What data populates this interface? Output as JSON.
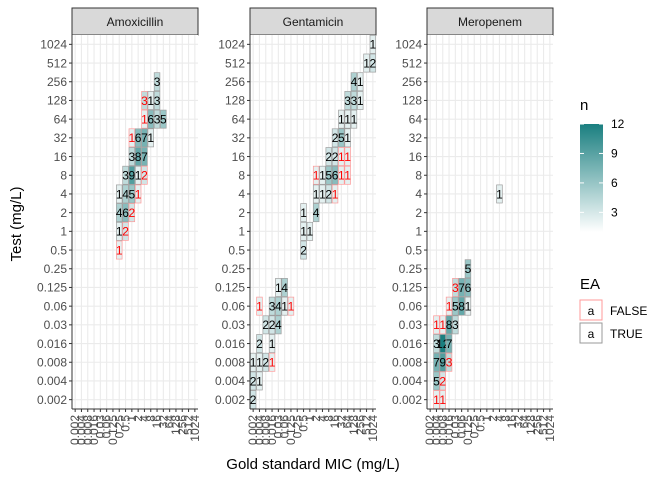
{
  "chart_data": {
    "type": "heatmap",
    "xlabel": "Gold standard MIC (mg/L)",
    "ylabel": "Test (mg/L)",
    "levels": [
      "0.002",
      "0.004",
      "0.008",
      "0.016",
      "0.03",
      "0.06",
      "0.125",
      "0.25",
      "0.5",
      "1",
      "2",
      "4",
      "8",
      "16",
      "32",
      "64",
      "128",
      "256",
      "512",
      "1024"
    ],
    "fill_legend": {
      "title": "n",
      "ticks": [
        3,
        6,
        9,
        12
      ],
      "min": 1,
      "max": 12,
      "low_color": "#ffffff",
      "high_color": "#1a7f80"
    },
    "ea_legend": {
      "title": "EA",
      "entries": [
        {
          "label": "FALSE",
          "glyph": "a",
          "color": "#ff0000",
          "border": "#ff9999"
        },
        {
          "label": "TRUE",
          "glyph": "a",
          "color": "#000000",
          "border": "#999999"
        }
      ]
    },
    "panels": [
      {
        "name": "Amoxicillin",
        "cells": [
          {
            "x": "16",
            "y": "256",
            "n": 3,
            "ea": true
          },
          {
            "x": "4",
            "y": "128",
            "n": 3,
            "ea": false
          },
          {
            "x": "8",
            "y": "128",
            "n": 1,
            "ea": true
          },
          {
            "x": "16",
            "y": "128",
            "n": 3,
            "ea": true
          },
          {
            "x": "4",
            "y": "64",
            "n": 1,
            "ea": false
          },
          {
            "x": "8",
            "y": "64",
            "n": 6,
            "ea": true
          },
          {
            "x": "16",
            "y": "64",
            "n": 3,
            "ea": true
          },
          {
            "x": "32",
            "y": "64",
            "n": 5,
            "ea": true
          },
          {
            "x": "1",
            "y": "32",
            "n": 1,
            "ea": false
          },
          {
            "x": "2",
            "y": "32",
            "n": 6,
            "ea": true
          },
          {
            "x": "4",
            "y": "32",
            "n": 7,
            "ea": true
          },
          {
            "x": "8",
            "y": "32",
            "n": 1,
            "ea": true
          },
          {
            "x": "1",
            "y": "16",
            "n": 3,
            "ea": true
          },
          {
            "x": "2",
            "y": "16",
            "n": 8,
            "ea": true
          },
          {
            "x": "4",
            "y": "16",
            "n": 7,
            "ea": true
          },
          {
            "x": "0.5",
            "y": "8",
            "n": 3,
            "ea": true
          },
          {
            "x": "1",
            "y": "8",
            "n": 9,
            "ea": true
          },
          {
            "x": "2",
            "y": "8",
            "n": 1,
            "ea": true
          },
          {
            "x": "4",
            "y": "8",
            "n": 2,
            "ea": false
          },
          {
            "x": "0.25",
            "y": "4",
            "n": 1,
            "ea": true
          },
          {
            "x": "0.5",
            "y": "4",
            "n": 4,
            "ea": true
          },
          {
            "x": "1",
            "y": "4",
            "n": 5,
            "ea": true
          },
          {
            "x": "2",
            "y": "4",
            "n": 1,
            "ea": false
          },
          {
            "x": "0.25",
            "y": "2",
            "n": 4,
            "ea": true
          },
          {
            "x": "0.5",
            "y": "2",
            "n": 6,
            "ea": true
          },
          {
            "x": "1",
            "y": "2",
            "n": 2,
            "ea": false
          },
          {
            "x": "0.25",
            "y": "1",
            "n": 1,
            "ea": true
          },
          {
            "x": "0.5",
            "y": "1",
            "n": 2,
            "ea": false
          },
          {
            "x": "0.25",
            "y": "0.5",
            "n": 1,
            "ea": false
          }
        ]
      },
      {
        "name": "Gentamicin",
        "cells": [
          {
            "x": "1024",
            "y": "1024",
            "n": 1,
            "ea": true
          },
          {
            "x": "512",
            "y": "512",
            "n": 1,
            "ea": true
          },
          {
            "x": "1024",
            "y": "512",
            "n": 2,
            "ea": true
          },
          {
            "x": "128",
            "y": "256",
            "n": 4,
            "ea": true
          },
          {
            "x": "256",
            "y": "256",
            "n": 1,
            "ea": true
          },
          {
            "x": "64",
            "y": "128",
            "n": 3,
            "ea": true
          },
          {
            "x": "128",
            "y": "128",
            "n": 3,
            "ea": true
          },
          {
            "x": "256",
            "y": "128",
            "n": 1,
            "ea": true
          },
          {
            "x": "32",
            "y": "64",
            "n": 1,
            "ea": true
          },
          {
            "x": "64",
            "y": "64",
            "n": 1,
            "ea": true
          },
          {
            "x": "128",
            "y": "64",
            "n": 1,
            "ea": true
          },
          {
            "x": "16",
            "y": "32",
            "n": 2,
            "ea": true
          },
          {
            "x": "32",
            "y": "32",
            "n": 5,
            "ea": true
          },
          {
            "x": "64",
            "y": "32",
            "n": 1,
            "ea": true
          },
          {
            "x": "8",
            "y": "16",
            "n": 2,
            "ea": true
          },
          {
            "x": "16",
            "y": "16",
            "n": 2,
            "ea": true
          },
          {
            "x": "32",
            "y": "16",
            "n": 1,
            "ea": false
          },
          {
            "x": "64",
            "y": "16",
            "n": 1,
            "ea": false
          },
          {
            "x": "2",
            "y": "8",
            "n": 1,
            "ea": false
          },
          {
            "x": "4",
            "y": "8",
            "n": 1,
            "ea": true
          },
          {
            "x": "8",
            "y": "8",
            "n": 5,
            "ea": true
          },
          {
            "x": "16",
            "y": "8",
            "n": 6,
            "ea": true
          },
          {
            "x": "32",
            "y": "8",
            "n": 1,
            "ea": false
          },
          {
            "x": "64",
            "y": "8",
            "n": 1,
            "ea": false
          },
          {
            "x": "2",
            "y": "4",
            "n": 1,
            "ea": true
          },
          {
            "x": "4",
            "y": "4",
            "n": 1,
            "ea": true
          },
          {
            "x": "8",
            "y": "4",
            "n": 2,
            "ea": true
          },
          {
            "x": "16",
            "y": "4",
            "n": 1,
            "ea": false
          },
          {
            "x": "0.5",
            "y": "2",
            "n": 1,
            "ea": true
          },
          {
            "x": "2",
            "y": "2",
            "n": 4,
            "ea": true
          },
          {
            "x": "0.5",
            "y": "1",
            "n": 1,
            "ea": true
          },
          {
            "x": "1",
            "y": "1",
            "n": 1,
            "ea": true
          },
          {
            "x": "0.5",
            "y": "0.5",
            "n": 2,
            "ea": true
          },
          {
            "x": "0.03",
            "y": "0.125",
            "n": 1,
            "ea": true
          },
          {
            "x": "0.06",
            "y": "0.125",
            "n": 4,
            "ea": true
          },
          {
            "x": "0.004",
            "y": "0.06",
            "n": 1,
            "ea": false
          },
          {
            "x": "0.016",
            "y": "0.06",
            "n": 3,
            "ea": true
          },
          {
            "x": "0.03",
            "y": "0.06",
            "n": 4,
            "ea": true
          },
          {
            "x": "0.06",
            "y": "0.06",
            "n": 1,
            "ea": true
          },
          {
            "x": "0.125",
            "y": "0.06",
            "n": 1,
            "ea": false
          },
          {
            "x": "0.008",
            "y": "0.03",
            "n": 2,
            "ea": true
          },
          {
            "x": "0.016",
            "y": "0.03",
            "n": 2,
            "ea": true
          },
          {
            "x": "0.03",
            "y": "0.03",
            "n": 4,
            "ea": true
          },
          {
            "x": "0.004",
            "y": "0.016",
            "n": 2,
            "ea": true
          },
          {
            "x": "0.016",
            "y": "0.016",
            "n": 1,
            "ea": true
          },
          {
            "x": "0.002",
            "y": "0.008",
            "n": 1,
            "ea": true
          },
          {
            "x": "0.004",
            "y": "0.008",
            "n": 1,
            "ea": true
          },
          {
            "x": "0.008",
            "y": "0.008",
            "n": 2,
            "ea": true
          },
          {
            "x": "0.016",
            "y": "0.008",
            "n": 1,
            "ea": false
          },
          {
            "x": "0.002",
            "y": "0.004",
            "n": 2,
            "ea": true
          },
          {
            "x": "0.004",
            "y": "0.004",
            "n": 1,
            "ea": true
          },
          {
            "x": "0.002",
            "y": "0.002",
            "n": 2,
            "ea": true
          }
        ]
      },
      {
        "name": "Meropenem",
        "cells": [
          {
            "x": "4",
            "y": "4",
            "n": 1,
            "ea": true
          },
          {
            "x": "0.125",
            "y": "0.25",
            "n": 5,
            "ea": true
          },
          {
            "x": "0.03",
            "y": "0.125",
            "n": 3,
            "ea": false
          },
          {
            "x": "0.06",
            "y": "0.125",
            "n": 7,
            "ea": true
          },
          {
            "x": "0.125",
            "y": "0.125",
            "n": 6,
            "ea": true
          },
          {
            "x": "0.016",
            "y": "0.06",
            "n": 1,
            "ea": false
          },
          {
            "x": "0.03",
            "y": "0.06",
            "n": 5,
            "ea": true
          },
          {
            "x": "0.06",
            "y": "0.06",
            "n": 8,
            "ea": true
          },
          {
            "x": "0.125",
            "y": "0.06",
            "n": 1,
            "ea": true
          },
          {
            "x": "0.004",
            "y": "0.03",
            "n": 1,
            "ea": false
          },
          {
            "x": "0.008",
            "y": "0.03",
            "n": 1,
            "ea": false
          },
          {
            "x": "0.016",
            "y": "0.03",
            "n": 8,
            "ea": true
          },
          {
            "x": "0.03",
            "y": "0.03",
            "n": 3,
            "ea": true
          },
          {
            "x": "0.004",
            "y": "0.016",
            "n": 3,
            "ea": true
          },
          {
            "x": "0.008",
            "y": "0.016",
            "n": 12,
            "ea": true
          },
          {
            "x": "0.016",
            "y": "0.016",
            "n": 7,
            "ea": true
          },
          {
            "x": "0.004",
            "y": "0.008",
            "n": 7,
            "ea": true
          },
          {
            "x": "0.008",
            "y": "0.008",
            "n": 9,
            "ea": true
          },
          {
            "x": "0.016",
            "y": "0.008",
            "n": 3,
            "ea": false
          },
          {
            "x": "0.004",
            "y": "0.004",
            "n": 5,
            "ea": true
          },
          {
            "x": "0.008",
            "y": "0.004",
            "n": 2,
            "ea": false
          },
          {
            "x": "0.004",
            "y": "0.002",
            "n": 1,
            "ea": false
          },
          {
            "x": "0.008",
            "y": "0.002",
            "n": 1,
            "ea": false
          }
        ]
      }
    ]
  }
}
